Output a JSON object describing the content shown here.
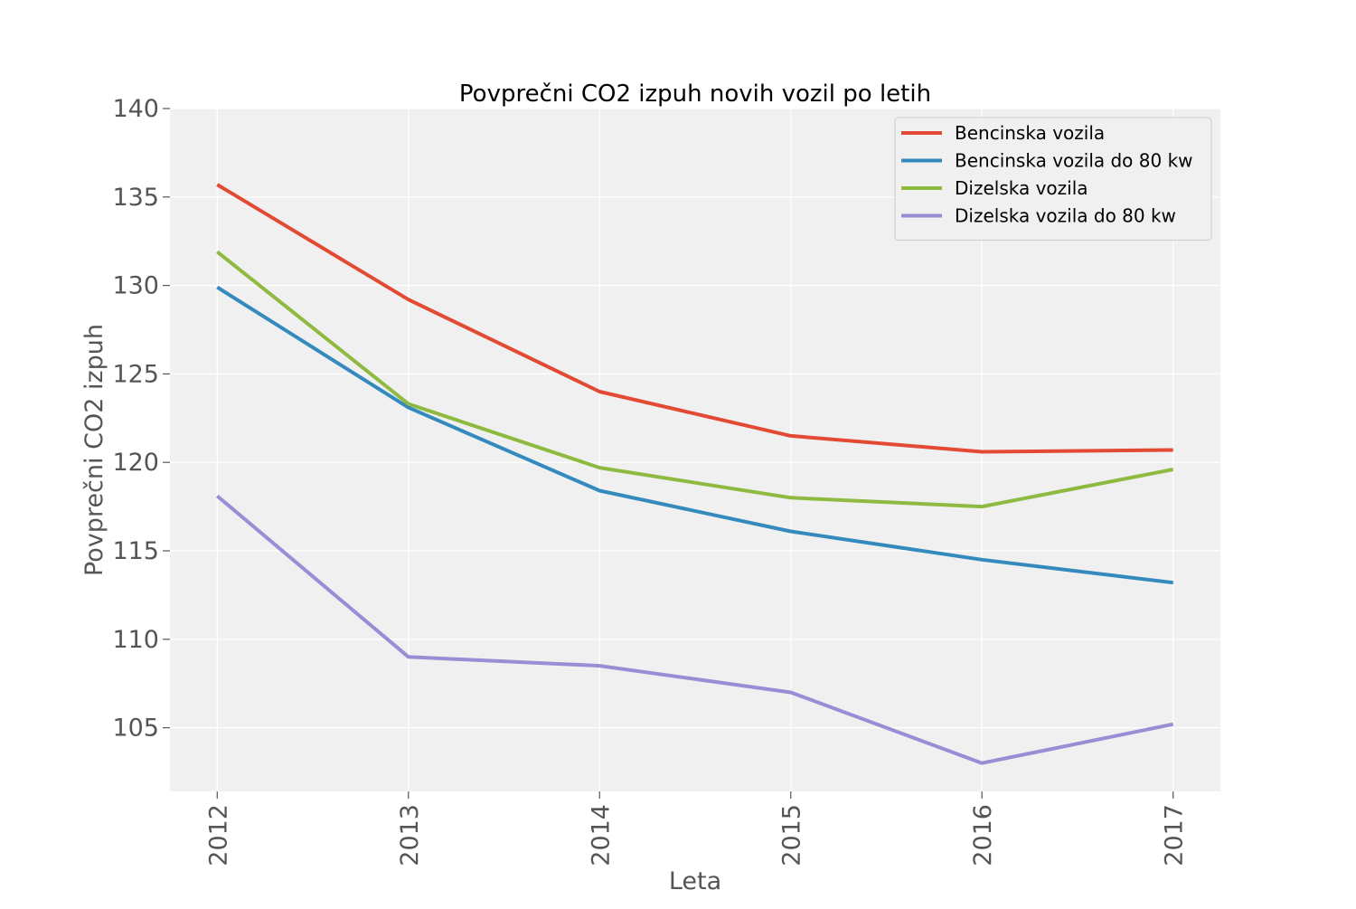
{
  "chart_data": {
    "type": "line",
    "title": "Povprečni CO2 izpuh novih vozil po letih",
    "xlabel": "Leta",
    "ylabel": "Povprečni CO2 izpuh",
    "categories": [
      "2012",
      "2013",
      "2014",
      "2015",
      "2016",
      "2017"
    ],
    "ylim": [
      101.4,
      140
    ],
    "yticks": [
      105,
      110,
      115,
      120,
      125,
      130,
      135,
      140
    ],
    "grid": true,
    "legend_position": "top-right",
    "background": "#f0f0f0",
    "series": [
      {
        "name": "Bencinska vozila",
        "color": "#e24a33",
        "values": [
          135.7,
          129.2,
          124.0,
          121.5,
          120.6,
          120.7
        ]
      },
      {
        "name": "Bencinska vozila do 80 kw",
        "color": "#348abd",
        "values": [
          129.9,
          123.1,
          118.4,
          116.1,
          114.5,
          113.2
        ]
      },
      {
        "name": "Dizelska vozila",
        "color": "#8eba42",
        "values": [
          131.9,
          123.3,
          119.7,
          118.0,
          117.5,
          119.6
        ]
      },
      {
        "name": "Dizelska vozila do 80 kw",
        "color": "#988ed5",
        "values": [
          118.1,
          109.0,
          108.5,
          107.0,
          103.0,
          105.2
        ]
      }
    ]
  }
}
